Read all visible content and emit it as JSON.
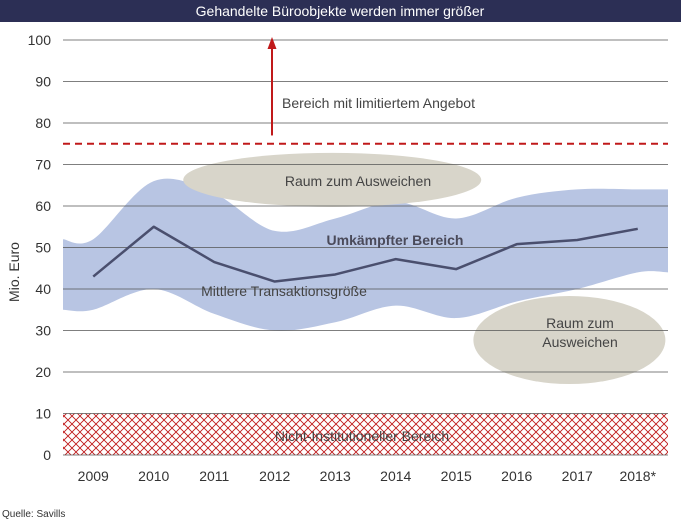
{
  "chart_data": {
    "type": "line",
    "title": "Gehandelte Büroobjekte werden immer größer",
    "ylabel": "Mio. Euro",
    "xlabel": "",
    "ylim": [
      0,
      100
    ],
    "yticks": [
      0,
      10,
      20,
      30,
      40,
      50,
      60,
      70,
      80,
      90,
      100
    ],
    "categories": [
      "2009",
      "2010",
      "2011",
      "2012",
      "2013",
      "2014",
      "2015",
      "2016",
      "2017",
      "2018*"
    ],
    "series": [
      {
        "name": "Mittlere Transaktionsgröße",
        "values": [
          43,
          55,
          46.5,
          41.8,
          43.5,
          47.2,
          44.8,
          50.8,
          51.8,
          54.5
        ],
        "color": "#4a4f6e"
      }
    ],
    "reference_line": {
      "value": 75,
      "style": "dashed",
      "color": "#c0191a"
    },
    "band_upper": [
      52,
      66,
      63,
      54,
      57,
      61,
      57,
      62,
      64,
      64
    ],
    "band_lower": [
      35,
      40,
      34,
      30,
      32,
      36,
      33,
      37,
      40,
      44
    ],
    "band_color": "#b8c5e3",
    "hatched_zone": {
      "from": 0,
      "to": 10,
      "color": "#c0191a"
    },
    "annotations": {
      "limited": "Bereich mit limitiertem Angebot",
      "contested": "Umkämpfter Bereich",
      "median_label": "Mittlere Transaktionsgröße",
      "alt_upper": "Raum zum Ausweichen",
      "alt_lower_1": "Raum zum",
      "alt_lower_2": "Ausweichen",
      "non_institutional": "Nicht-Institutioneller Bereich"
    },
    "ellipse_color": "#d8d5ca",
    "title_bar_color": "#2c2f55",
    "source": "Quelle: Savills",
    "grid": true
  }
}
